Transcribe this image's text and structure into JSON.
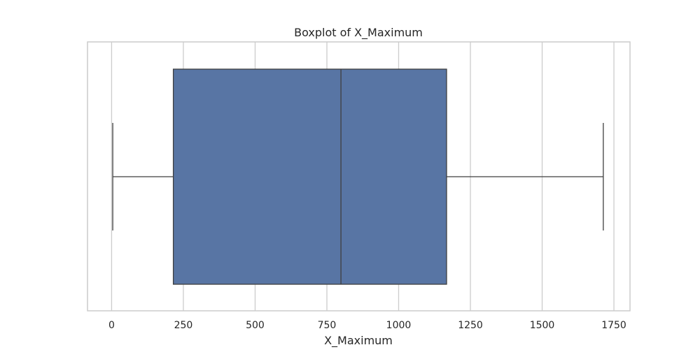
{
  "chart_data": {
    "type": "boxplot",
    "title": "Boxplot of X_Maximum",
    "xlabel": "X_Maximum",
    "ylabel": "",
    "xlim": [
      -84,
      1806
    ],
    "xticks": [
      0,
      250,
      500,
      750,
      1000,
      1250,
      1500,
      1750
    ],
    "xtick_labels": [
      "0",
      "250",
      "500",
      "750",
      "1000",
      "1250",
      "1500",
      "1750"
    ],
    "grid": true,
    "series": [
      {
        "min": 4,
        "q1": 215,
        "median": 799,
        "q3": 1167,
        "max": 1713
      }
    ],
    "colors": {
      "box_fill": "#5875a4",
      "box_edge": "#3f3f3f",
      "grid": "#cccccc",
      "frame": "#cccccc"
    }
  }
}
